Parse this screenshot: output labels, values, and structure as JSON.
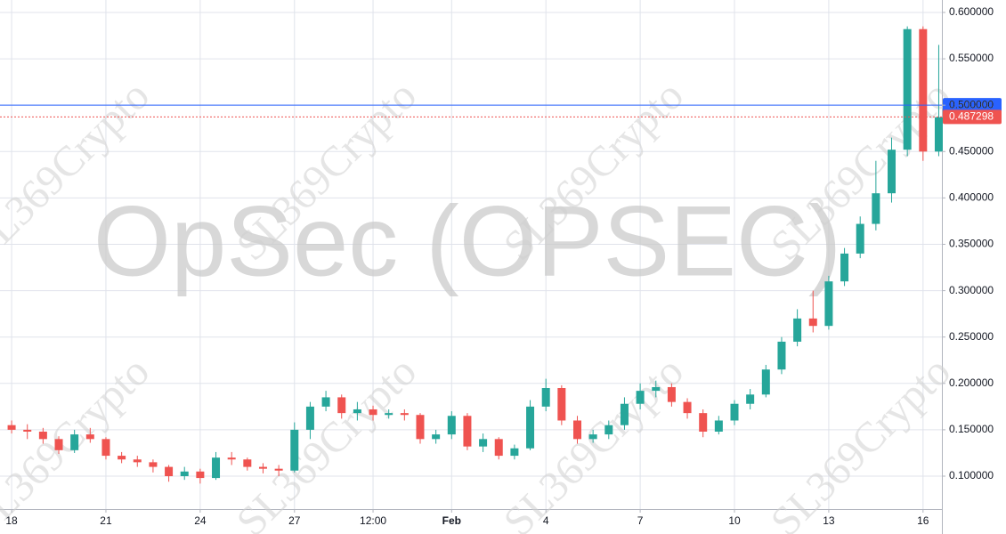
{
  "chart_data": {
    "type": "candlestick",
    "title": "OpSec (OPSEC)",
    "watermark": "SL369Crypto",
    "xlim": [
      -0.37,
      29.6
    ],
    "xticks": [
      {
        "value": 0,
        "label": "18"
      },
      {
        "value": 3,
        "label": "21"
      },
      {
        "value": 6,
        "label": "24"
      },
      {
        "value": 9,
        "label": "27"
      },
      {
        "value": 11.5,
        "label": "12:00"
      },
      {
        "value": 14,
        "label": "Feb"
      },
      {
        "value": 17,
        "label": "4"
      },
      {
        "value": 20,
        "label": "7"
      },
      {
        "value": 23,
        "label": "10"
      },
      {
        "value": 26,
        "label": "13"
      },
      {
        "value": 29,
        "label": "16"
      }
    ],
    "ylim": [
      0.0645,
      0.6134
    ],
    "yticks": [
      {
        "value": 0.1,
        "label": "0.100000"
      },
      {
        "value": 0.15,
        "label": "0.150000"
      },
      {
        "value": 0.2,
        "label": "0.200000"
      },
      {
        "value": 0.25,
        "label": "0.250000"
      },
      {
        "value": 0.3,
        "label": "0.300000"
      },
      {
        "value": 0.35,
        "label": "0.350000"
      },
      {
        "value": 0.4,
        "label": "0.400000"
      },
      {
        "value": 0.45,
        "label": "0.450000"
      },
      {
        "value": 0.5,
        "label": "0.500000"
      },
      {
        "value": 0.55,
        "label": "0.550000"
      },
      {
        "value": 0.6,
        "label": "0.600000"
      }
    ],
    "grid": true,
    "up_color": "#26a69a",
    "down_color": "#ef5350",
    "price_lines": [
      {
        "value": 0.5,
        "label": "0.500000",
        "color": "#2962ff",
        "style": "solid"
      },
      {
        "value": 0.487298,
        "label": "0.487298",
        "color": "#ef5350",
        "style": "dotted"
      }
    ],
    "x": [
      0,
      0.5,
      1,
      1.5,
      2,
      2.5,
      3,
      3.5,
      4,
      4.5,
      5,
      5.5,
      6,
      6.5,
      7,
      7.5,
      8,
      8.5,
      9,
      9.5,
      10,
      10.5,
      11,
      11.5,
      12,
      12.5,
      13,
      13.5,
      14,
      14.5,
      15,
      15.5,
      16,
      16.5,
      17,
      17.5,
      18,
      18.5,
      19,
      19.5,
      20,
      20.5,
      21,
      21.5,
      22,
      22.5,
      23,
      23.5,
      24,
      24.5,
      25,
      25.5,
      26,
      26.5,
      27,
      27.5,
      28,
      28.5,
      29,
      29.5
    ],
    "open": [
      0.155,
      0.15,
      0.148,
      0.14,
      0.128,
      0.145,
      0.14,
      0.122,
      0.118,
      0.115,
      0.11,
      0.1,
      0.105,
      0.098,
      0.12,
      0.118,
      0.11,
      0.108,
      0.106,
      0.15,
      0.175,
      0.185,
      0.168,
      0.172,
      0.166,
      0.168,
      0.166,
      0.14,
      0.145,
      0.165,
      0.132,
      0.14,
      0.122,
      0.13,
      0.175,
      0.195,
      0.16,
      0.14,
      0.145,
      0.155,
      0.178,
      0.192,
      0.196,
      0.18,
      0.168,
      0.148,
      0.16,
      0.178,
      0.188,
      0.215,
      0.245,
      0.27,
      0.262,
      0.31,
      0.34,
      0.372,
      0.405,
      0.452,
      0.582,
      0.45
    ],
    "high": [
      0.16,
      0.156,
      0.152,
      0.143,
      0.15,
      0.152,
      0.142,
      0.126,
      0.122,
      0.118,
      0.112,
      0.11,
      0.108,
      0.126,
      0.126,
      0.12,
      0.114,
      0.112,
      0.158,
      0.18,
      0.192,
      0.188,
      0.18,
      0.176,
      0.172,
      0.172,
      0.168,
      0.15,
      0.17,
      0.168,
      0.146,
      0.142,
      0.134,
      0.182,
      0.205,
      0.198,
      0.165,
      0.15,
      0.16,
      0.185,
      0.2,
      0.203,
      0.2,
      0.184,
      0.172,
      0.165,
      0.182,
      0.194,
      0.22,
      0.25,
      0.28,
      0.3,
      0.316,
      0.346,
      0.38,
      0.44,
      0.465,
      0.585,
      0.585,
      0.565
    ],
    "low": [
      0.146,
      0.14,
      0.135,
      0.124,
      0.125,
      0.136,
      0.118,
      0.114,
      0.11,
      0.104,
      0.094,
      0.096,
      0.092,
      0.096,
      0.112,
      0.106,
      0.103,
      0.1,
      0.104,
      0.14,
      0.17,
      0.162,
      0.16,
      0.16,
      0.162,
      0.16,
      0.135,
      0.135,
      0.14,
      0.128,
      0.126,
      0.118,
      0.118,
      0.128,
      0.17,
      0.155,
      0.135,
      0.136,
      0.14,
      0.15,
      0.172,
      0.185,
      0.175,
      0.162,
      0.142,
      0.145,
      0.155,
      0.172,
      0.185,
      0.21,
      0.24,
      0.255,
      0.258,
      0.305,
      0.335,
      0.365,
      0.395,
      0.445,
      0.44,
      0.445
    ],
    "close": [
      0.15,
      0.148,
      0.14,
      0.128,
      0.145,
      0.14,
      0.122,
      0.118,
      0.115,
      0.11,
      0.1,
      0.105,
      0.098,
      0.12,
      0.118,
      0.11,
      0.108,
      0.106,
      0.15,
      0.175,
      0.185,
      0.168,
      0.172,
      0.166,
      0.168,
      0.166,
      0.14,
      0.145,
      0.165,
      0.132,
      0.14,
      0.122,
      0.13,
      0.175,
      0.195,
      0.16,
      0.14,
      0.145,
      0.155,
      0.178,
      0.192,
      0.196,
      0.18,
      0.168,
      0.148,
      0.16,
      0.178,
      0.188,
      0.215,
      0.245,
      0.27,
      0.262,
      0.31,
      0.34,
      0.372,
      0.405,
      0.452,
      0.582,
      0.45,
      0.487
    ]
  }
}
